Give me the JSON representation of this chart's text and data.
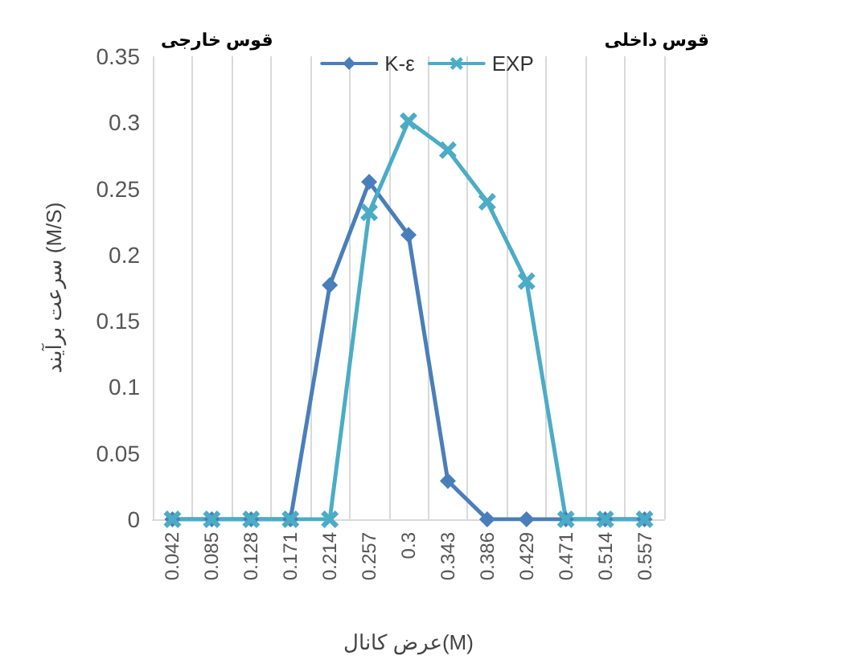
{
  "chart_data": {
    "type": "line",
    "xlabel": "عرض کانال(M)",
    "ylabel": "سرعت برآیند (M/S)",
    "categories": [
      "0.042",
      "0.085",
      "0.128",
      "0.171",
      "0.214",
      "0.257",
      "0.3",
      "0.343",
      "0.386",
      "0.429",
      "0.471",
      "0.514",
      "0.557"
    ],
    "series": [
      {
        "name": "K-ε",
        "color": "#4a7ebb",
        "marker": "diamond",
        "values": [
          0,
          0,
          0,
          0,
          0.177,
          0.255,
          0.215,
          0.029,
          0,
          0,
          0,
          0,
          0
        ]
      },
      {
        "name": "EXP",
        "color": "#4bacc6",
        "marker": "cross",
        "values": [
          0,
          0,
          0,
          0,
          0,
          0.232,
          0.301,
          0.279,
          0.24,
          0.18,
          0,
          0,
          0
        ]
      }
    ],
    "ylim": [
      0,
      0.35
    ],
    "yticks": [
      0,
      0.05,
      0.1,
      0.15,
      0.2,
      0.25,
      0.3,
      0.35
    ],
    "grid": "x",
    "legend": "top",
    "annotations": [
      "قوس خارجی",
      "قوس داخلی"
    ]
  }
}
